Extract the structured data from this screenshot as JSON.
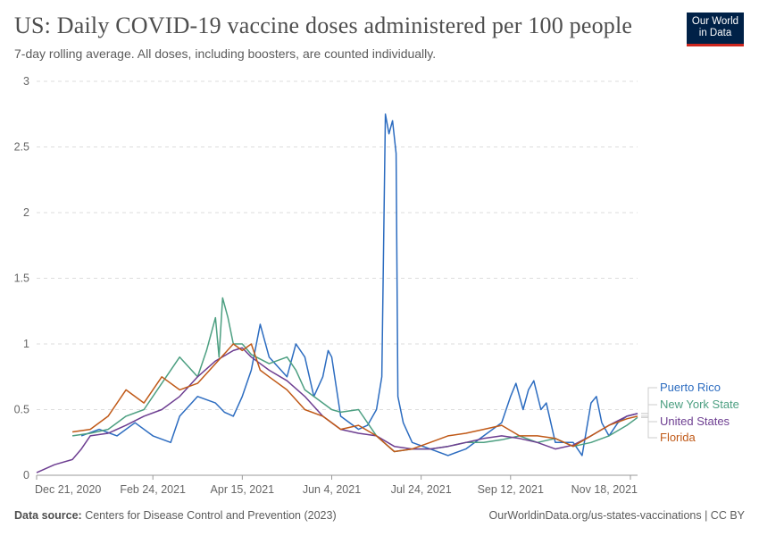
{
  "header": {
    "title": "US: Daily COVID-19 vaccine doses administered per 100 people",
    "subtitle": "7-day rolling average. All doses, including boosters, are counted individually.",
    "logo_line1": "Our World",
    "logo_line2": "in Data"
  },
  "footer": {
    "source_label": "Data source:",
    "source": " Centers for Disease Control and Prevention (2023)",
    "url": "OurWorldinData.org/us-states-vaccinations | CC BY"
  },
  "chart_data": {
    "type": "line",
    "title": "US: Daily COVID-19 vaccine doses administered per 100 people",
    "xlabel": "",
    "ylabel": "",
    "x_unit": "days since Dec 21, 2020",
    "xlim": [
      0,
      336
    ],
    "ylim": [
      0,
      3
    ],
    "yticks": [
      0,
      0.5,
      1,
      1.5,
      2,
      2.5,
      3
    ],
    "ytick_labels": [
      "0",
      "0.5",
      "1",
      "1.5",
      "2",
      "2.5",
      "3"
    ],
    "xticks": [
      {
        "day": 0,
        "label": "Dec 21, 2020"
      },
      {
        "day": 65,
        "label": "Feb 24, 2021"
      },
      {
        "day": 115,
        "label": "Apr 15, 2021"
      },
      {
        "day": 165,
        "label": "Jun 4, 2021"
      },
      {
        "day": 215,
        "label": "Jul 24, 2021"
      },
      {
        "day": 265,
        "label": "Sep 12, 2021"
      },
      {
        "day": 332,
        "label": "Nov 18, 2021"
      }
    ],
    "grid": true,
    "legend_placement": "right",
    "series": [
      {
        "name": "Puerto Rico",
        "color": "#2c6cc0",
        "points": [
          [
            25,
            0.3
          ],
          [
            35,
            0.35
          ],
          [
            45,
            0.3
          ],
          [
            55,
            0.4
          ],
          [
            65,
            0.3
          ],
          [
            75,
            0.25
          ],
          [
            80,
            0.45
          ],
          [
            90,
            0.6
          ],
          [
            100,
            0.55
          ],
          [
            105,
            0.48
          ],
          [
            110,
            0.45
          ],
          [
            115,
            0.6
          ],
          [
            120,
            0.8
          ],
          [
            125,
            1.15
          ],
          [
            130,
            0.9
          ],
          [
            140,
            0.75
          ],
          [
            145,
            1.0
          ],
          [
            150,
            0.9
          ],
          [
            155,
            0.6
          ],
          [
            160,
            0.75
          ],
          [
            163,
            0.95
          ],
          [
            165,
            0.9
          ],
          [
            170,
            0.45
          ],
          [
            180,
            0.35
          ],
          [
            185,
            0.38
          ],
          [
            190,
            0.5
          ],
          [
            193,
            0.75
          ],
          [
            195,
            2.75
          ],
          [
            197,
            2.6
          ],
          [
            199,
            2.7
          ],
          [
            201,
            2.45
          ],
          [
            202,
            0.6
          ],
          [
            205,
            0.4
          ],
          [
            210,
            0.25
          ],
          [
            220,
            0.2
          ],
          [
            230,
            0.15
          ],
          [
            240,
            0.2
          ],
          [
            250,
            0.3
          ],
          [
            260,
            0.4
          ],
          [
            265,
            0.6
          ],
          [
            268,
            0.7
          ],
          [
            272,
            0.5
          ],
          [
            275,
            0.65
          ],
          [
            278,
            0.72
          ],
          [
            282,
            0.5
          ],
          [
            285,
            0.55
          ],
          [
            290,
            0.25
          ],
          [
            300,
            0.25
          ],
          [
            305,
            0.15
          ],
          [
            310,
            0.55
          ],
          [
            313,
            0.6
          ],
          [
            316,
            0.4
          ],
          [
            320,
            0.3
          ],
          [
            325,
            0.4
          ],
          [
            330,
            0.45
          ],
          [
            336,
            0.47
          ]
        ]
      },
      {
        "name": "New York State",
        "color": "#4c9f81",
        "points": [
          [
            20,
            0.3
          ],
          [
            30,
            0.32
          ],
          [
            40,
            0.35
          ],
          [
            50,
            0.45
          ],
          [
            60,
            0.5
          ],
          [
            70,
            0.7
          ],
          [
            80,
            0.9
          ],
          [
            90,
            0.75
          ],
          [
            95,
            0.95
          ],
          [
            100,
            1.2
          ],
          [
            102,
            0.9
          ],
          [
            104,
            1.35
          ],
          [
            107,
            1.2
          ],
          [
            110,
            1.0
          ],
          [
            115,
            1.0
          ],
          [
            120,
            0.92
          ],
          [
            130,
            0.85
          ],
          [
            140,
            0.9
          ],
          [
            145,
            0.8
          ],
          [
            150,
            0.65
          ],
          [
            160,
            0.55
          ],
          [
            165,
            0.5
          ],
          [
            170,
            0.48
          ],
          [
            180,
            0.5
          ],
          [
            190,
            0.3
          ],
          [
            200,
            0.18
          ],
          [
            210,
            0.2
          ],
          [
            220,
            0.2
          ],
          [
            230,
            0.22
          ],
          [
            240,
            0.25
          ],
          [
            250,
            0.25
          ],
          [
            260,
            0.27
          ],
          [
            270,
            0.3
          ],
          [
            280,
            0.25
          ],
          [
            290,
            0.28
          ],
          [
            300,
            0.22
          ],
          [
            310,
            0.25
          ],
          [
            320,
            0.3
          ],
          [
            330,
            0.38
          ],
          [
            336,
            0.44
          ]
        ]
      },
      {
        "name": "United States",
        "color": "#6d3e91",
        "points": [
          [
            0,
            0.02
          ],
          [
            10,
            0.08
          ],
          [
            20,
            0.12
          ],
          [
            25,
            0.2
          ],
          [
            30,
            0.3
          ],
          [
            40,
            0.32
          ],
          [
            50,
            0.38
          ],
          [
            60,
            0.45
          ],
          [
            70,
            0.5
          ],
          [
            80,
            0.6
          ],
          [
            90,
            0.75
          ],
          [
            100,
            0.87
          ],
          [
            110,
            0.95
          ],
          [
            115,
            0.97
          ],
          [
            120,
            0.9
          ],
          [
            130,
            0.8
          ],
          [
            140,
            0.72
          ],
          [
            150,
            0.6
          ],
          [
            160,
            0.45
          ],
          [
            170,
            0.35
          ],
          [
            180,
            0.32
          ],
          [
            190,
            0.3
          ],
          [
            200,
            0.22
          ],
          [
            210,
            0.2
          ],
          [
            220,
            0.2
          ],
          [
            230,
            0.22
          ],
          [
            240,
            0.25
          ],
          [
            250,
            0.28
          ],
          [
            260,
            0.3
          ],
          [
            270,
            0.28
          ],
          [
            280,
            0.25
          ],
          [
            290,
            0.2
          ],
          [
            300,
            0.23
          ],
          [
            310,
            0.3
          ],
          [
            320,
            0.38
          ],
          [
            330,
            0.45
          ],
          [
            336,
            0.47
          ]
        ]
      },
      {
        "name": "Florida",
        "color": "#c05917",
        "points": [
          [
            20,
            0.33
          ],
          [
            30,
            0.35
          ],
          [
            40,
            0.45
          ],
          [
            50,
            0.65
          ],
          [
            60,
            0.55
          ],
          [
            70,
            0.75
          ],
          [
            80,
            0.65
          ],
          [
            90,
            0.7
          ],
          [
            100,
            0.85
          ],
          [
            110,
            1.0
          ],
          [
            115,
            0.95
          ],
          [
            120,
            1.0
          ],
          [
            125,
            0.8
          ],
          [
            130,
            0.75
          ],
          [
            140,
            0.65
          ],
          [
            150,
            0.5
          ],
          [
            160,
            0.45
          ],
          [
            170,
            0.35
          ],
          [
            180,
            0.38
          ],
          [
            190,
            0.3
          ],
          [
            200,
            0.18
          ],
          [
            210,
            0.2
          ],
          [
            220,
            0.25
          ],
          [
            230,
            0.3
          ],
          [
            240,
            0.32
          ],
          [
            250,
            0.35
          ],
          [
            260,
            0.38
          ],
          [
            270,
            0.3
          ],
          [
            280,
            0.3
          ],
          [
            290,
            0.28
          ],
          [
            300,
            0.22
          ],
          [
            310,
            0.3
          ],
          [
            320,
            0.38
          ],
          [
            330,
            0.43
          ],
          [
            336,
            0.45
          ]
        ]
      }
    ]
  }
}
